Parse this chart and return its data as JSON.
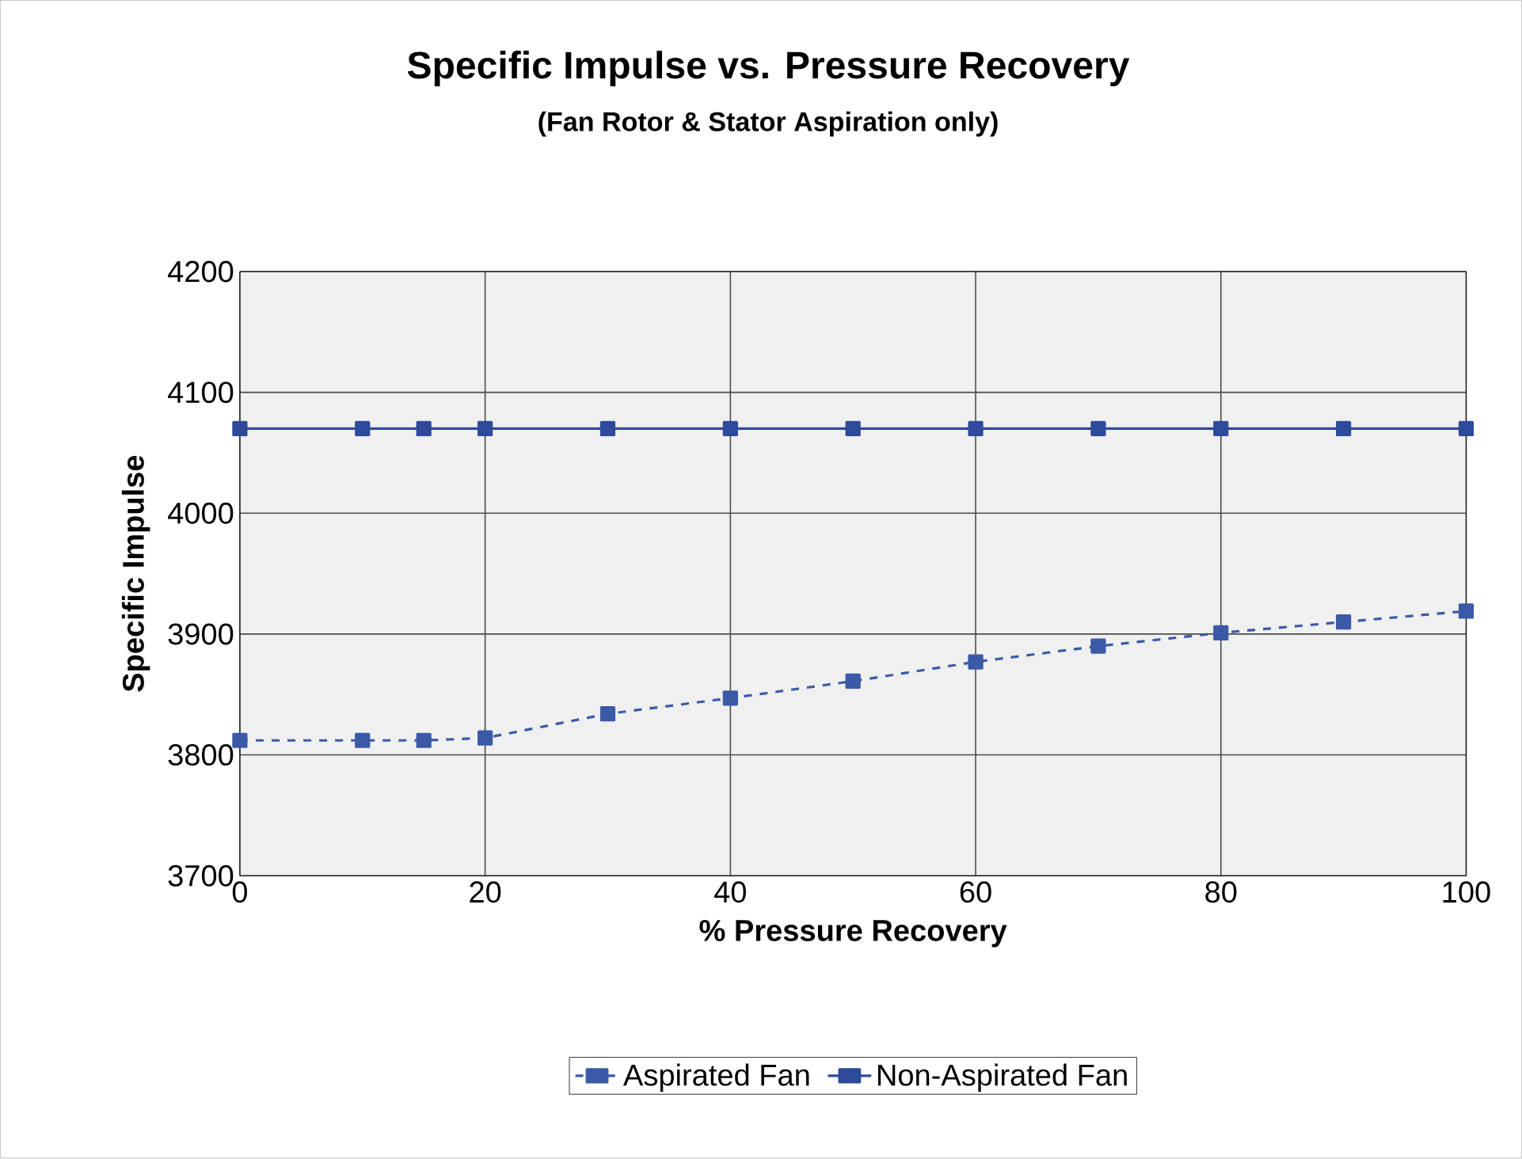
{
  "chart_data": {
    "type": "line",
    "title": "Specific Impulse vs. Pressure Recovery",
    "subtitle": "(Fan Rotor & Stator Aspiration only)",
    "xlabel": "% Pressure Recovery",
    "ylabel": "Specific Impulse",
    "x": [
      0,
      10,
      15,
      20,
      30,
      40,
      50,
      60,
      70,
      80,
      90,
      100
    ],
    "series": [
      {
        "name": "Aspirated Fan",
        "color": "#3a5aa8",
        "line_style": "dashed",
        "values": [
          3812,
          3812,
          3812,
          3814,
          3834,
          3847,
          3861,
          3877,
          3890,
          3901,
          3910,
          3919
        ]
      },
      {
        "name": "Non-Aspirated Fan",
        "color": "#2e4a9a",
        "line_style": "solid",
        "values": [
          4070,
          4070,
          4070,
          4070,
          4070,
          4070,
          4070,
          4070,
          4070,
          4070,
          4070,
          4070
        ]
      }
    ],
    "xlim": [
      0,
      100
    ],
    "ylim": [
      3700,
      4200
    ],
    "xticks": [
      0,
      20,
      40,
      60,
      80,
      100
    ],
    "yticks": [
      3700,
      3800,
      3900,
      4000,
      4100,
      4200
    ],
    "grid": true,
    "legend": "bottom",
    "marker": "square"
  }
}
